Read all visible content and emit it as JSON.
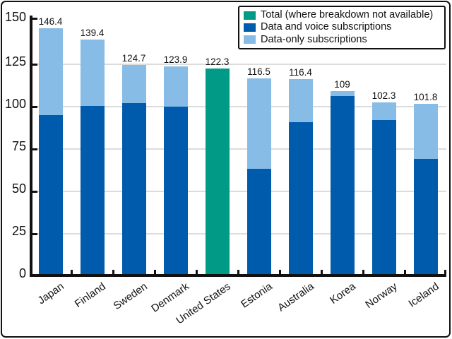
{
  "chart_data": {
    "type": "bar",
    "stacked": true,
    "categories": [
      "Japan",
      "Finland",
      "Sweden",
      "Denmark",
      "United States",
      "Estonia",
      "Australia",
      "Korea",
      "Norway",
      "Iceland"
    ],
    "series": [
      {
        "name": "Total (where breakdown not available)",
        "color": "#009A87",
        "values": [
          null,
          null,
          null,
          null,
          122.3,
          null,
          null,
          null,
          null,
          null
        ]
      },
      {
        "name": "Data and voice subscriptions",
        "color": "#005BAC",
        "values": [
          94.8,
          100.4,
          102.0,
          100.0,
          null,
          63.4,
          90.8,
          106.4,
          92.1,
          69.0
        ]
      },
      {
        "name": "Data-only subscriptions",
        "color": "#87BCE7",
        "values": [
          51.6,
          39.0,
          22.7,
          23.9,
          null,
          53.1,
          25.6,
          2.6,
          10.2,
          32.8
        ]
      }
    ],
    "total_labels": [
      "146.4",
      "139.4",
      "124.7",
      "123.9",
      "122.3",
      "116.5",
      "116.4",
      "109",
      "102.3",
      "101.8"
    ],
    "ylim": [
      0,
      150
    ],
    "yticks": [
      0,
      25,
      50,
      75,
      100,
      125,
      150
    ],
    "gridlines_at": [
      25,
      50,
      75,
      100,
      125
    ],
    "grid": "horizontal",
    "legend_position": "top-right"
  },
  "legend": {
    "items": [
      {
        "label": "Total (where breakdown not available)",
        "color": "#009A87"
      },
      {
        "label": "Data and voice subscriptions",
        "color": "#005BAC"
      },
      {
        "label": "Data-only subscriptions",
        "color": "#87BCE7"
      }
    ]
  },
  "colors": {
    "bar_green": "#009A87",
    "bar_dark_blue": "#005BAC",
    "bar_light_blue": "#87BCE7",
    "gridline": "#DCDCDC",
    "axis": "#111111",
    "frame": "#111111",
    "background": "#FFFFFF",
    "text": "#111111"
  }
}
